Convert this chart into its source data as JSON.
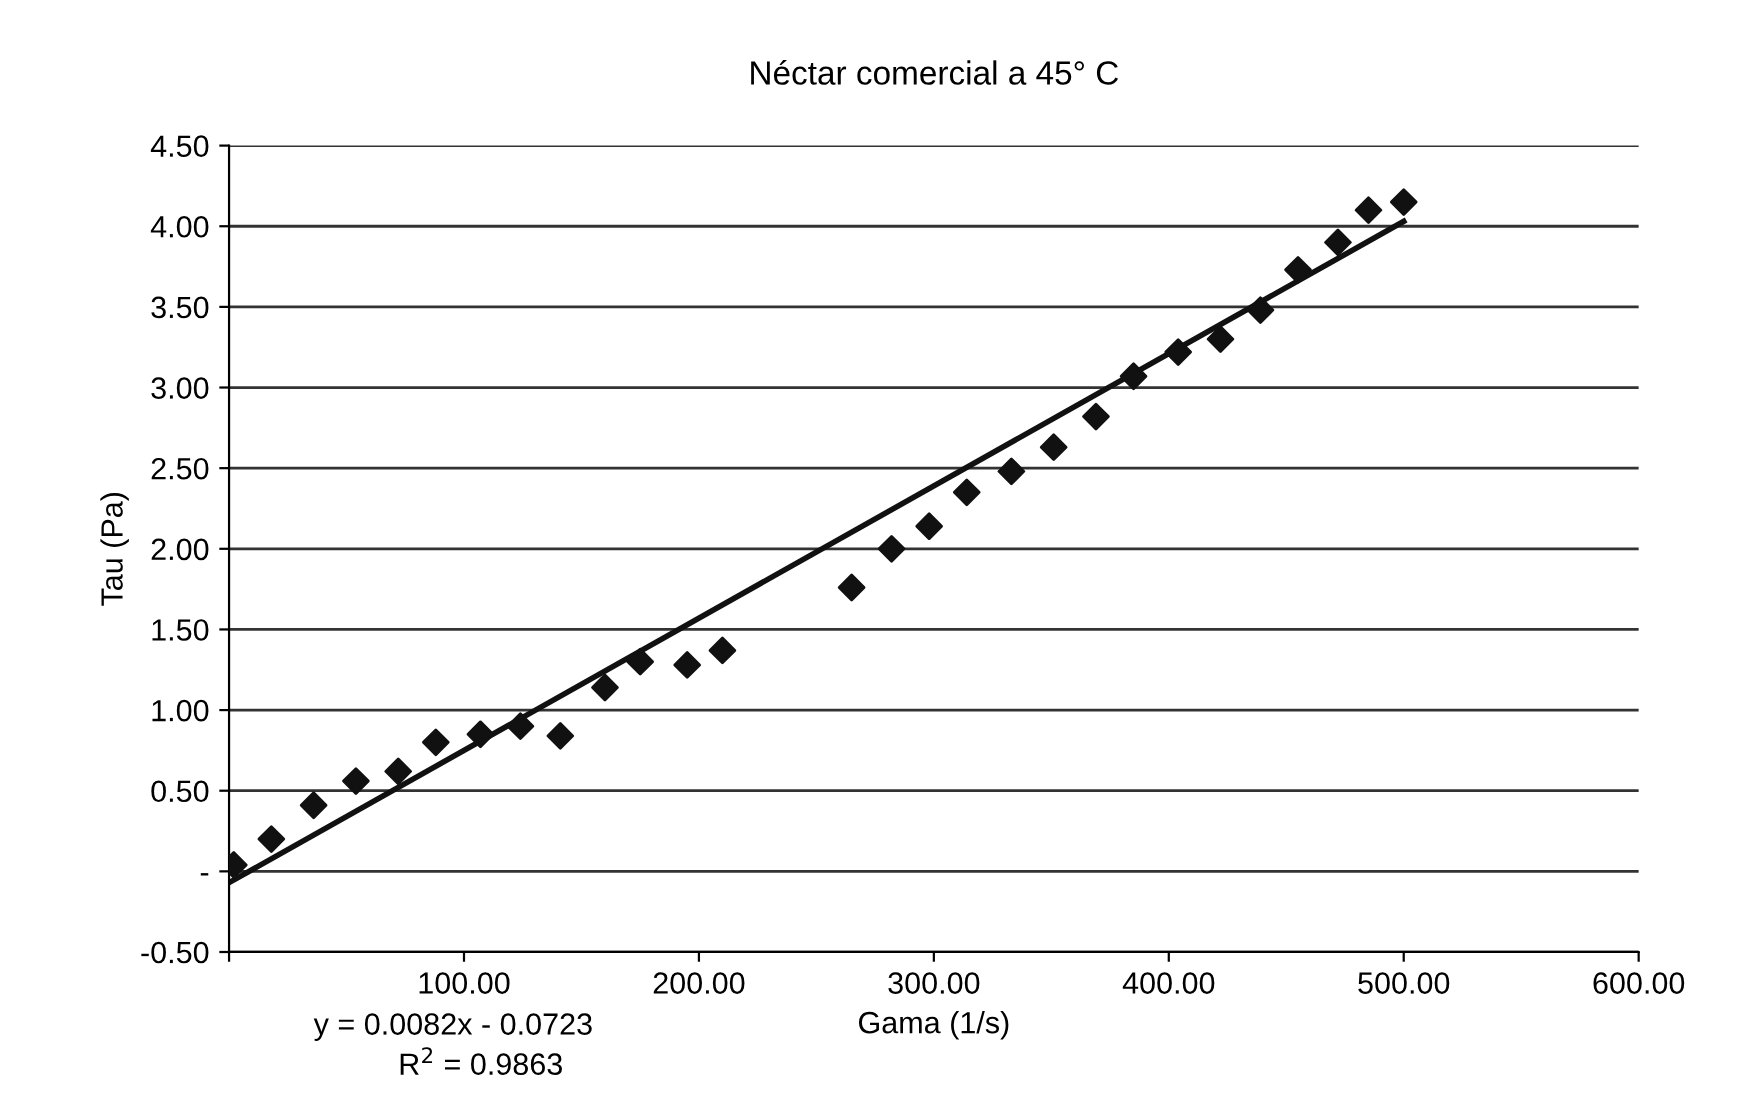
{
  "chart_data": {
    "type": "scatter",
    "title": "Néctar comercial a 45° C",
    "xlabel": "Gama (1/s)",
    "ylabel": "Tau (Pa)",
    "series": [
      {
        "color": "#111111",
        "marker": "diamond",
        "x": [
          2,
          18,
          36,
          54,
          72,
          88,
          107,
          124,
          141,
          160,
          175,
          195,
          210,
          265,
          282,
          298,
          314,
          333,
          351,
          369,
          385,
          404,
          422,
          439,
          455,
          472,
          485,
          500
        ],
        "values": [
          0.04,
          0.2,
          0.41,
          0.56,
          0.62,
          0.8,
          0.85,
          0.9,
          0.84,
          1.14,
          1.3,
          1.28,
          1.37,
          1.76,
          2.0,
          2.14,
          2.35,
          2.48,
          2.63,
          2.82,
          3.07,
          3.22,
          3.3,
          3.48,
          3.73,
          3.9,
          4.1,
          4.15
        ]
      },
      {
        "type": "line",
        "color": "#111111",
        "line_style": "solid",
        "x": [
          0,
          500
        ],
        "values": [
          -0.07,
          4.03
        ]
      }
    ],
    "xlim": [
      0,
      600
    ],
    "xticks": [
      {
        "value": 0,
        "label": null
      },
      {
        "value": 100,
        "label": "100.00"
      },
      {
        "value": 200,
        "label": "200.00"
      },
      {
        "value": 300,
        "label": "300.00"
      },
      {
        "value": 400,
        "label": "400.00"
      },
      {
        "value": 500,
        "label": "500.00"
      },
      {
        "value": 600,
        "label": "600.00"
      }
    ],
    "ylim": [
      -0.5,
      4.5
    ],
    "yticks": [
      {
        "value": -0.5,
        "label": "-0.50"
      },
      {
        "value": 0,
        "label": "-"
      },
      {
        "value": 0.5,
        "label": "0.50"
      },
      {
        "value": 1,
        "label": "1.00"
      },
      {
        "value": 1.5,
        "label": "1.50"
      },
      {
        "value": 2,
        "label": "2.00"
      },
      {
        "value": 2.5,
        "label": "2.50"
      },
      {
        "value": 3,
        "label": "3.00"
      },
      {
        "value": 3.5,
        "label": "3.50"
      },
      {
        "value": 4,
        "label": "4.00"
      },
      {
        "value": 4.5,
        "label": "4.50"
      }
    ],
    "grid": "y",
    "legend": false,
    "annotations": [
      "y = 0.0082x - 0.0723",
      "R$^{2}$ = 0.9863"
    ]
  }
}
